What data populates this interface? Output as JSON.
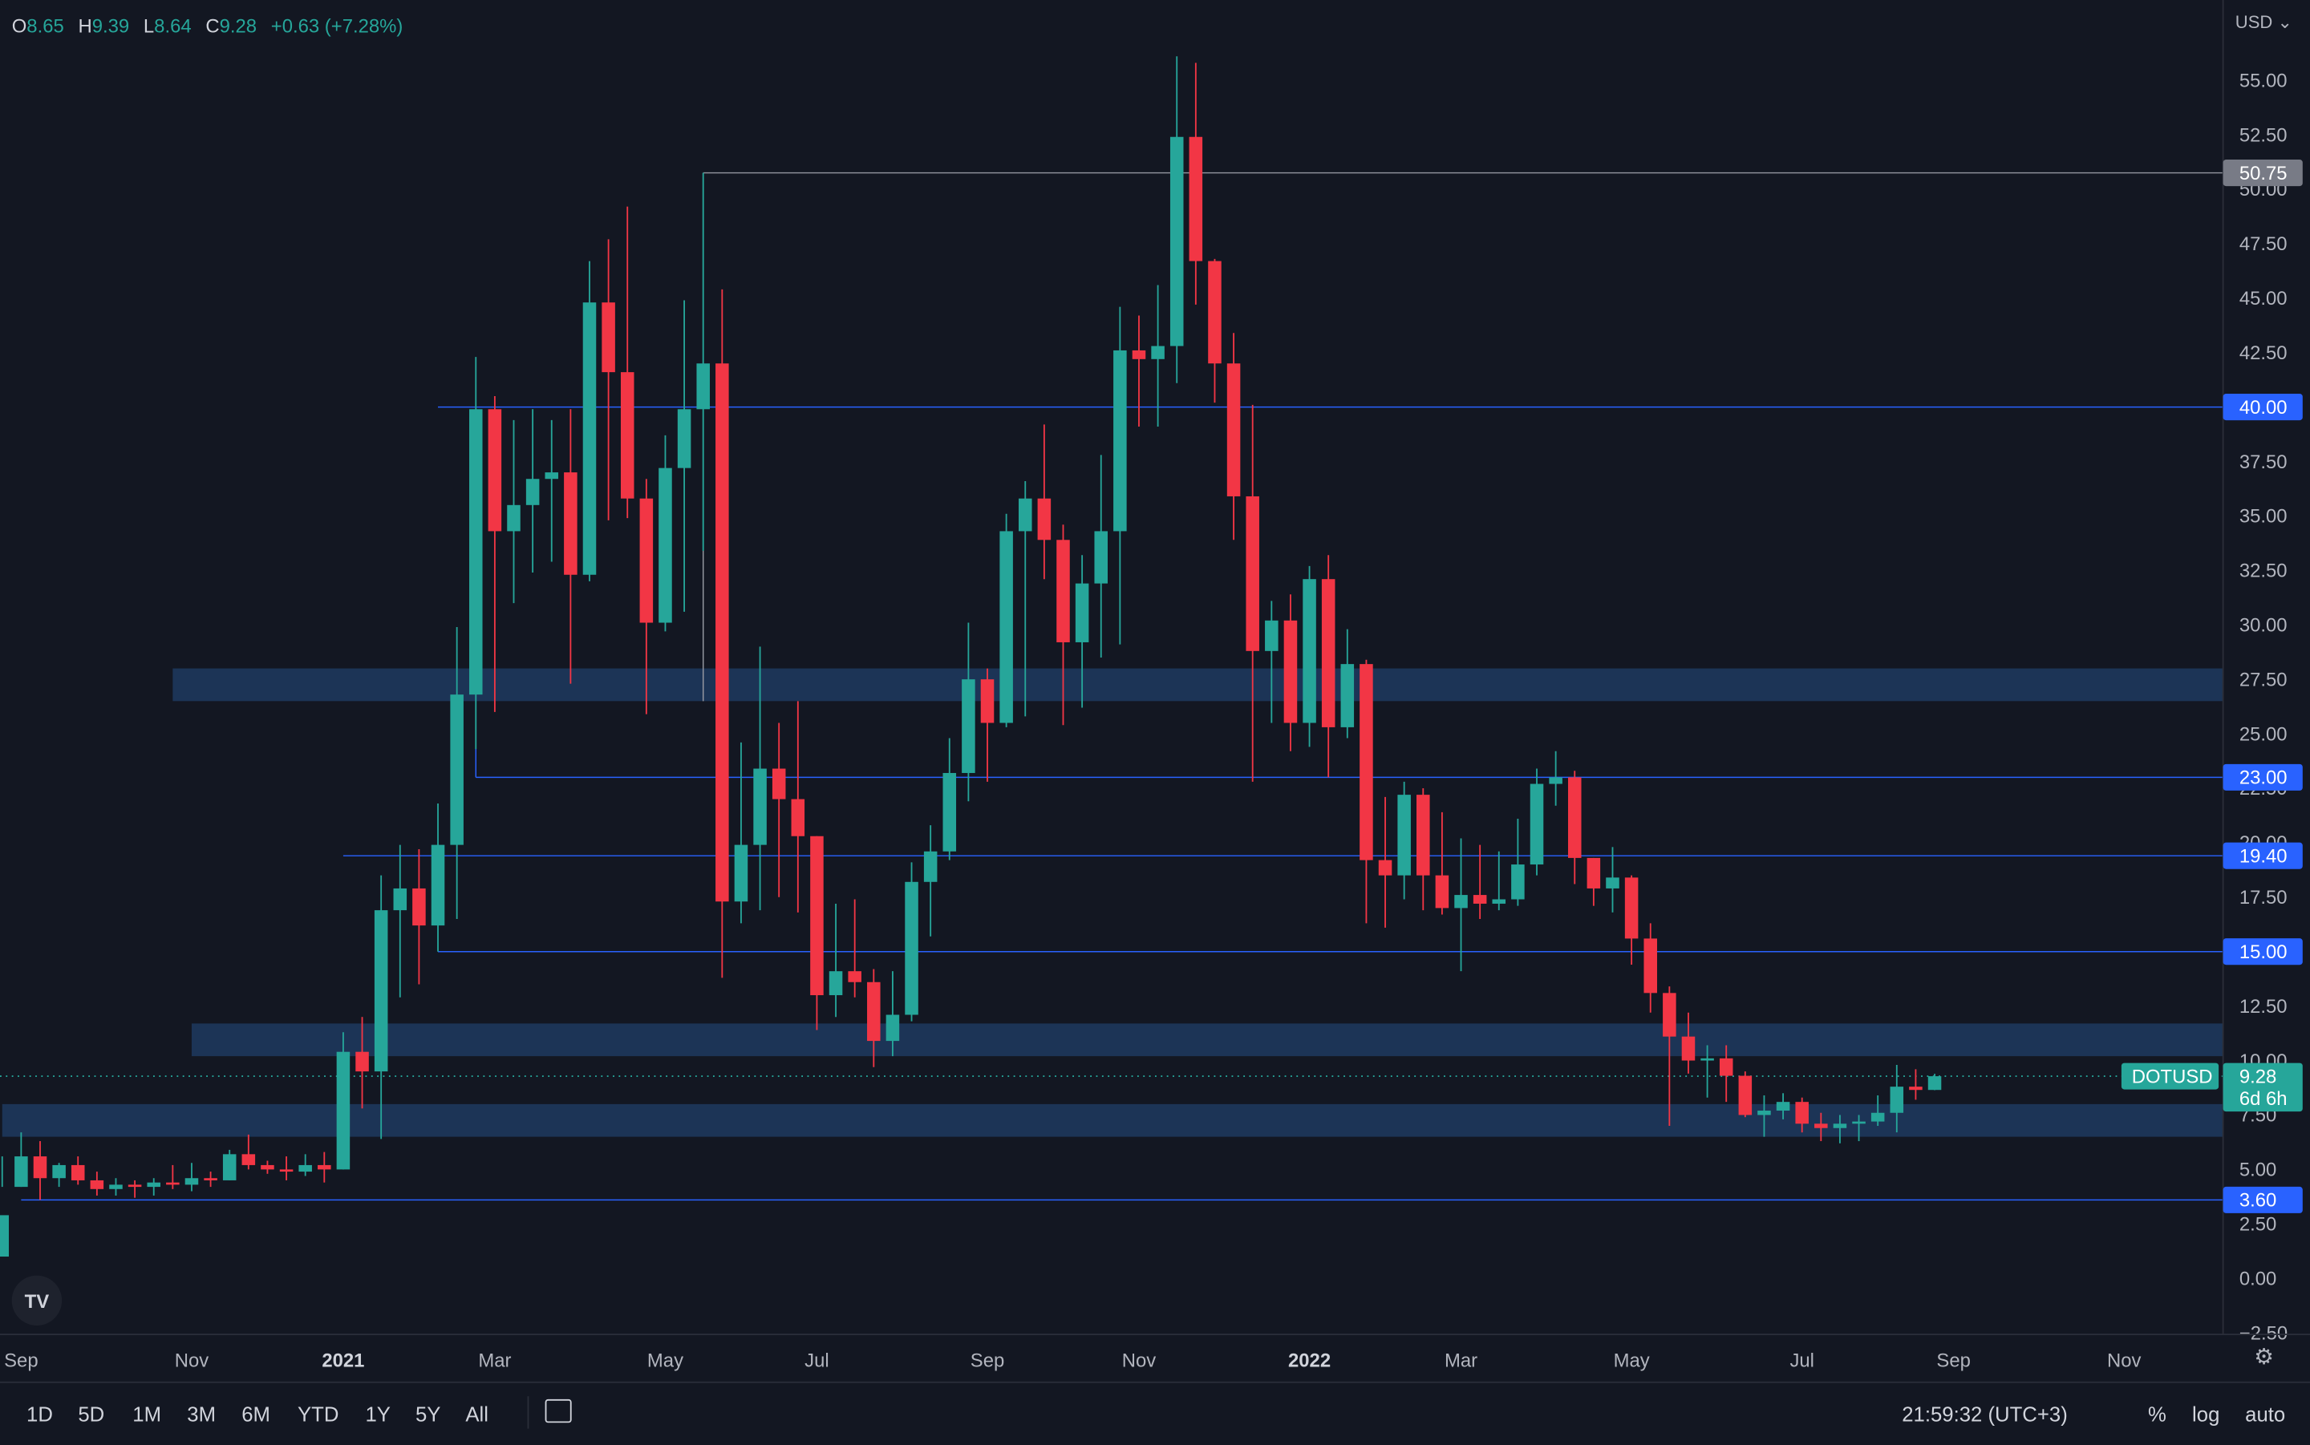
{
  "header": {
    "open_label": "O",
    "open": "8.65",
    "high_label": "H",
    "high": "9.39",
    "low_label": "L",
    "low": "8.64",
    "close_label": "C",
    "close": "9.28",
    "change": "+0.63 (+7.28%)"
  },
  "currency": "USD",
  "symbol_label": "DOTUSD",
  "price_tag": "9.28",
  "countdown": "6d 6h",
  "logo": "TV",
  "timeframes": [
    "1D",
    "5D",
    "1M",
    "3M",
    "6M",
    "YTD",
    "1Y",
    "5Y",
    "All"
  ],
  "clock": "21:59:32 (UTC+3)",
  "options": {
    "percent": "%",
    "log": "log",
    "auto": "auto"
  },
  "icons": {
    "calendar": "calendar-range-icon",
    "settings": "gear-icon",
    "dropdown": "chevron-down-icon"
  },
  "colors": {
    "up": "#26a69a",
    "down": "#f23645",
    "zone": "#1e3a5f",
    "level_line": "#2962ff",
    "tag_blue": "#2962ff"
  },
  "chart_data": {
    "type": "candlestick",
    "interval": "weekly",
    "ylim": [
      -2.5,
      57.5
    ],
    "y_ticks": [
      55,
      52.5,
      50,
      47.5,
      45,
      42.5,
      40,
      37.5,
      35,
      32.5,
      30,
      27.5,
      25,
      22.5,
      20,
      17.5,
      15,
      12.5,
      10,
      7.5,
      5,
      2.5,
      0,
      -2.5
    ],
    "y_tick_labels": [
      "55.00",
      "52.50",
      "50.00",
      "47.50",
      "45.00",
      "42.50",
      "40.00",
      "37.50",
      "35.00",
      "32.50",
      "30.00",
      "27.50",
      "25.00",
      "22.50",
      "20.00",
      "17.50",
      "15.00",
      "12.50",
      "10.00",
      "7.50",
      "5.00",
      "2.50",
      "0.00",
      "−2.50"
    ],
    "x_labels": [
      "Sep",
      "Nov",
      "2021",
      "Mar",
      "May",
      "Jul",
      "Sep",
      "Nov",
      "2022",
      "Mar",
      "May",
      "Jul",
      "Sep",
      "Nov"
    ],
    "x_label_index": [
      1,
      10,
      18,
      26,
      35,
      43,
      52,
      60,
      69,
      77,
      86,
      95,
      103,
      112
    ],
    "level_tags": [
      50.75,
      40.0,
      23.0,
      19.4,
      15.0,
      3.6
    ],
    "level_tag_labels": [
      "50.75",
      "40.00",
      "23.00",
      "19.40",
      "15.00",
      "3.60"
    ],
    "level_start_index": [
      37,
      23,
      25,
      18,
      23,
      1
    ],
    "zones": [
      [
        26.5,
        28
      ],
      [
        10.2,
        11.7
      ],
      [
        6.5,
        8
      ]
    ],
    "zone_start_index": [
      9,
      10,
      0
    ],
    "candles": [
      [
        1,
        2.9,
        4.2,
        5.6,
        2.6
      ],
      [
        4.2,
        5.6,
        6.7,
        4.2
      ],
      [
        5.6,
        4.6,
        6.3,
        3.6
      ],
      [
        4.6,
        5.2,
        5.3,
        4.2
      ],
      [
        5.2,
        4.5,
        5.6,
        4.3
      ],
      [
        4.5,
        4.1,
        4.9,
        3.8
      ],
      [
        4.1,
        4.3,
        4.6,
        3.8
      ],
      [
        4.3,
        4.2,
        4.5,
        3.7
      ],
      [
        4.2,
        4.4,
        4.6,
        3.8
      ],
      [
        4.4,
        4.3,
        5.2,
        4.1
      ],
      [
        4.3,
        4.6,
        5.3,
        4
      ],
      [
        4.6,
        4.5,
        4.9,
        4.2
      ],
      [
        4.5,
        5.7,
        5.9,
        4.5
      ],
      [
        5.7,
        5.2,
        6.6,
        5
      ],
      [
        5.2,
        5,
        5.4,
        4.8
      ],
      [
        5,
        4.9,
        5.6,
        4.5
      ],
      [
        4.9,
        5.2,
        5.7,
        4.7
      ],
      [
        5.2,
        5,
        5.8,
        4.4
      ],
      [
        5,
        10.4,
        11.3,
        5
      ],
      [
        10.4,
        9.5,
        12,
        7.8
      ],
      [
        9.5,
        16.9,
        18.5,
        6.4
      ],
      [
        16.9,
        17.9,
        19.9,
        12.9
      ],
      [
        17.9,
        16.2,
        19.7,
        13.5
      ],
      [
        16.2,
        19.9,
        21.8,
        15
      ],
      [
        19.9,
        26.8,
        29.9,
        16.5
      ],
      [
        26.8,
        39.9,
        42.3,
        24.3
      ],
      [
        39.9,
        34.3,
        40.5,
        26
      ],
      [
        34.3,
        35.5,
        39.4,
        31
      ],
      [
        35.5,
        36.7,
        39.9,
        32.4
      ],
      [
        36.7,
        37,
        39.4,
        32.9
      ],
      [
        37,
        32.3,
        39.9,
        27.3
      ],
      [
        32.3,
        44.8,
        46.7,
        32
      ],
      [
        44.8,
        41.6,
        47.7,
        34.8
      ],
      [
        41.6,
        35.8,
        49.2,
        34.9
      ],
      [
        35.8,
        30.1,
        36.7,
        25.9
      ],
      [
        30.1,
        37.2,
        38.7,
        29.7
      ],
      [
        37.2,
        39.9,
        44.9,
        30.6
      ],
      [
        39.9,
        42,
        50.75,
        33.4
      ],
      [
        42,
        17.3,
        45.4,
        13.8
      ],
      [
        17.3,
        19.9,
        24.6,
        16.3
      ],
      [
        19.9,
        23.4,
        29,
        16.9
      ],
      [
        23.4,
        22,
        25.5,
        17.5
      ],
      [
        22,
        20.3,
        26.5,
        16.8
      ],
      [
        20.3,
        13,
        20.3,
        11.4
      ],
      [
        13,
        14.1,
        17.2,
        12
      ],
      [
        14.1,
        13.6,
        17.4,
        12.9
      ],
      [
        13.6,
        10.9,
        14.2,
        9.7
      ],
      [
        10.9,
        12.1,
        14.1,
        10.2
      ],
      [
        12.1,
        18.2,
        19.1,
        11.8
      ],
      [
        18.2,
        19.6,
        20.8,
        15.7
      ],
      [
        19.6,
        23.2,
        24.8,
        19.2
      ],
      [
        23.2,
        27.5,
        30.1,
        21.9
      ],
      [
        27.5,
        25.5,
        28,
        22.8
      ],
      [
        25.5,
        34.3,
        35.1,
        25.3
      ],
      [
        34.3,
        35.8,
        36.6,
        25.8
      ],
      [
        35.8,
        33.9,
        39.2,
        32.1
      ],
      [
        33.9,
        29.2,
        34.6,
        25.4
      ],
      [
        29.2,
        31.9,
        33.2,
        26.2
      ],
      [
        31.9,
        34.3,
        37.8,
        28.5
      ],
      [
        34.3,
        42.6,
        44.6,
        29.1
      ],
      [
        42.6,
        42.2,
        44.2,
        39.1
      ],
      [
        42.2,
        42.8,
        45.6,
        39.1
      ],
      [
        42.8,
        52.4,
        56.1,
        41.1
      ],
      [
        52.4,
        46.7,
        55.8,
        44.7
      ],
      [
        46.7,
        42,
        46.8,
        40.2
      ],
      [
        42,
        35.9,
        43.4,
        33.9
      ],
      [
        35.9,
        28.8,
        40.1,
        22.8
      ],
      [
        28.8,
        30.2,
        31.1,
        25.5
      ],
      [
        30.2,
        25.5,
        31.4,
        24.2
      ],
      [
        25.5,
        32.1,
        32.7,
        24.4
      ],
      [
        32.1,
        25.3,
        33.2,
        23
      ],
      [
        25.3,
        28.2,
        29.8,
        24.8
      ],
      [
        28.2,
        19.2,
        28.4,
        16.3
      ],
      [
        19.2,
        18.5,
        22.1,
        16.1
      ],
      [
        18.5,
        22.2,
        22.8,
        17.4
      ],
      [
        22.2,
        18.5,
        22.5,
        16.9
      ],
      [
        18.5,
        17,
        21.4,
        16.7
      ],
      [
        17,
        17.6,
        20.2,
        14.1
      ],
      [
        17.6,
        17.2,
        19.9,
        16.5
      ],
      [
        17.2,
        17.4,
        19.6,
        16.9
      ],
      [
        17.4,
        19,
        21.1,
        17.1
      ],
      [
        19,
        22.7,
        23.4,
        18.5
      ],
      [
        22.7,
        23,
        24.2,
        21.7
      ],
      [
        23,
        19.3,
        23.3,
        18.1
      ],
      [
        19.3,
        17.9,
        19.3,
        17.1
      ],
      [
        17.9,
        18.4,
        19.8,
        16.8
      ],
      [
        18.4,
        15.6,
        18.5,
        14.4
      ],
      [
        15.6,
        13.1,
        16.3,
        12.2
      ],
      [
        13.1,
        11.1,
        13.4,
        7
      ],
      [
        11.1,
        10,
        12.2,
        9.4
      ],
      [
        10,
        10.1,
        10.7,
        8.3
      ],
      [
        10.1,
        9.3,
        10.7,
        8.1
      ],
      [
        9.3,
        7.5,
        9.5,
        7.4
      ],
      [
        7.5,
        7.7,
        8.4,
        6.5
      ],
      [
        7.7,
        8.1,
        8.5,
        7.3
      ],
      [
        8.1,
        7.1,
        8.3,
        6.7
      ],
      [
        7.1,
        6.9,
        7.6,
        6.3
      ],
      [
        6.9,
        7.1,
        7.5,
        6.2
      ],
      [
        7.1,
        7.2,
        7.5,
        6.3
      ],
      [
        7.2,
        7.6,
        8.4,
        7
      ],
      [
        7.6,
        8.8,
        9.8,
        6.7
      ],
      [
        8.8,
        8.65,
        9.6,
        8.2
      ],
      [
        8.65,
        9.28,
        9.39,
        8.64
      ]
    ],
    "grid": false,
    "legend": "none"
  }
}
